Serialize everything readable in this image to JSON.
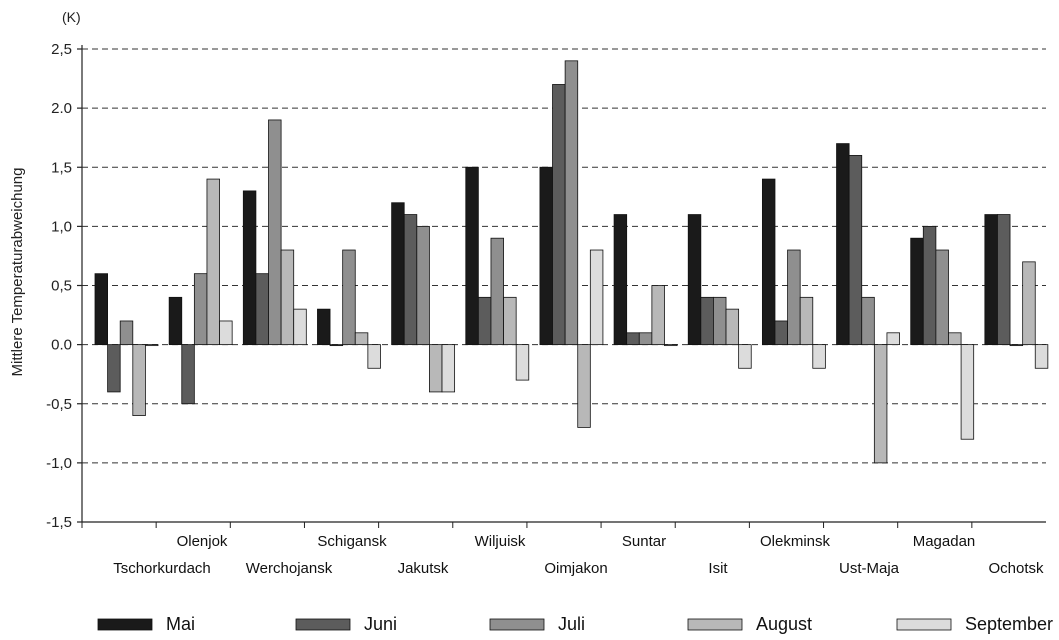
{
  "chart_data": {
    "type": "bar",
    "unit_label": "(K)",
    "ylabel": "Mittlere Temperaturabweichung",
    "xlabel": "",
    "ylim": [
      -1.5,
      2.5
    ],
    "yticks": [
      2.5,
      2.0,
      1.5,
      1.0,
      0.5,
      0.0,
      -0.5,
      -1.0,
      -1.5
    ],
    "ytick_labels": [
      "2,5",
      "2.0",
      "1,5",
      "1,0",
      "0,5",
      "0.0",
      "-0,5",
      "-1,0",
      "-1,5"
    ],
    "grid": "horizontal dashed",
    "legend_position": "bottom",
    "categories": [
      "Tschorkurdach",
      "Olenjok",
      "Werchojansk",
      "Schigansk",
      "Jakutsk",
      "Wiljuisk",
      "Oimjakon",
      "Suntar",
      "Isit",
      "Olekminsk",
      "Ust-Maja",
      "Magadan",
      "Ochotsk"
    ],
    "series": [
      {
        "name": "Mai",
        "color": "#1a1a1a",
        "values": [
          0.6,
          0.4,
          1.3,
          0.3,
          1.2,
          1.5,
          1.5,
          1.1,
          1.1,
          1.4,
          1.7,
          0.9,
          1.1
        ]
      },
      {
        "name": "Juni",
        "color": "#5c5c5c",
        "values": [
          -0.4,
          -0.5,
          0.6,
          0.0,
          1.1,
          0.4,
          2.2,
          0.1,
          0.4,
          0.2,
          1.6,
          1.0,
          1.1
        ]
      },
      {
        "name": "Juli",
        "color": "#8f8f8f",
        "values": [
          0.2,
          0.6,
          1.9,
          0.8,
          1.0,
          0.9,
          2.4,
          0.1,
          0.4,
          0.8,
          0.4,
          0.8,
          0.0
        ]
      },
      {
        "name": "August",
        "color": "#b8b8b8",
        "values": [
          -0.6,
          1.4,
          0.8,
          0.1,
          -0.4,
          0.4,
          -0.7,
          0.5,
          0.3,
          0.4,
          -1.0,
          0.1,
          0.7
        ]
      },
      {
        "name": "September",
        "color": "#dcdcdc",
        "values": [
          0.0,
          0.2,
          0.3,
          -0.2,
          -0.4,
          -0.3,
          0.8,
          0.0,
          -0.2,
          -0.2,
          0.1,
          -0.8,
          -0.2
        ]
      }
    ]
  }
}
